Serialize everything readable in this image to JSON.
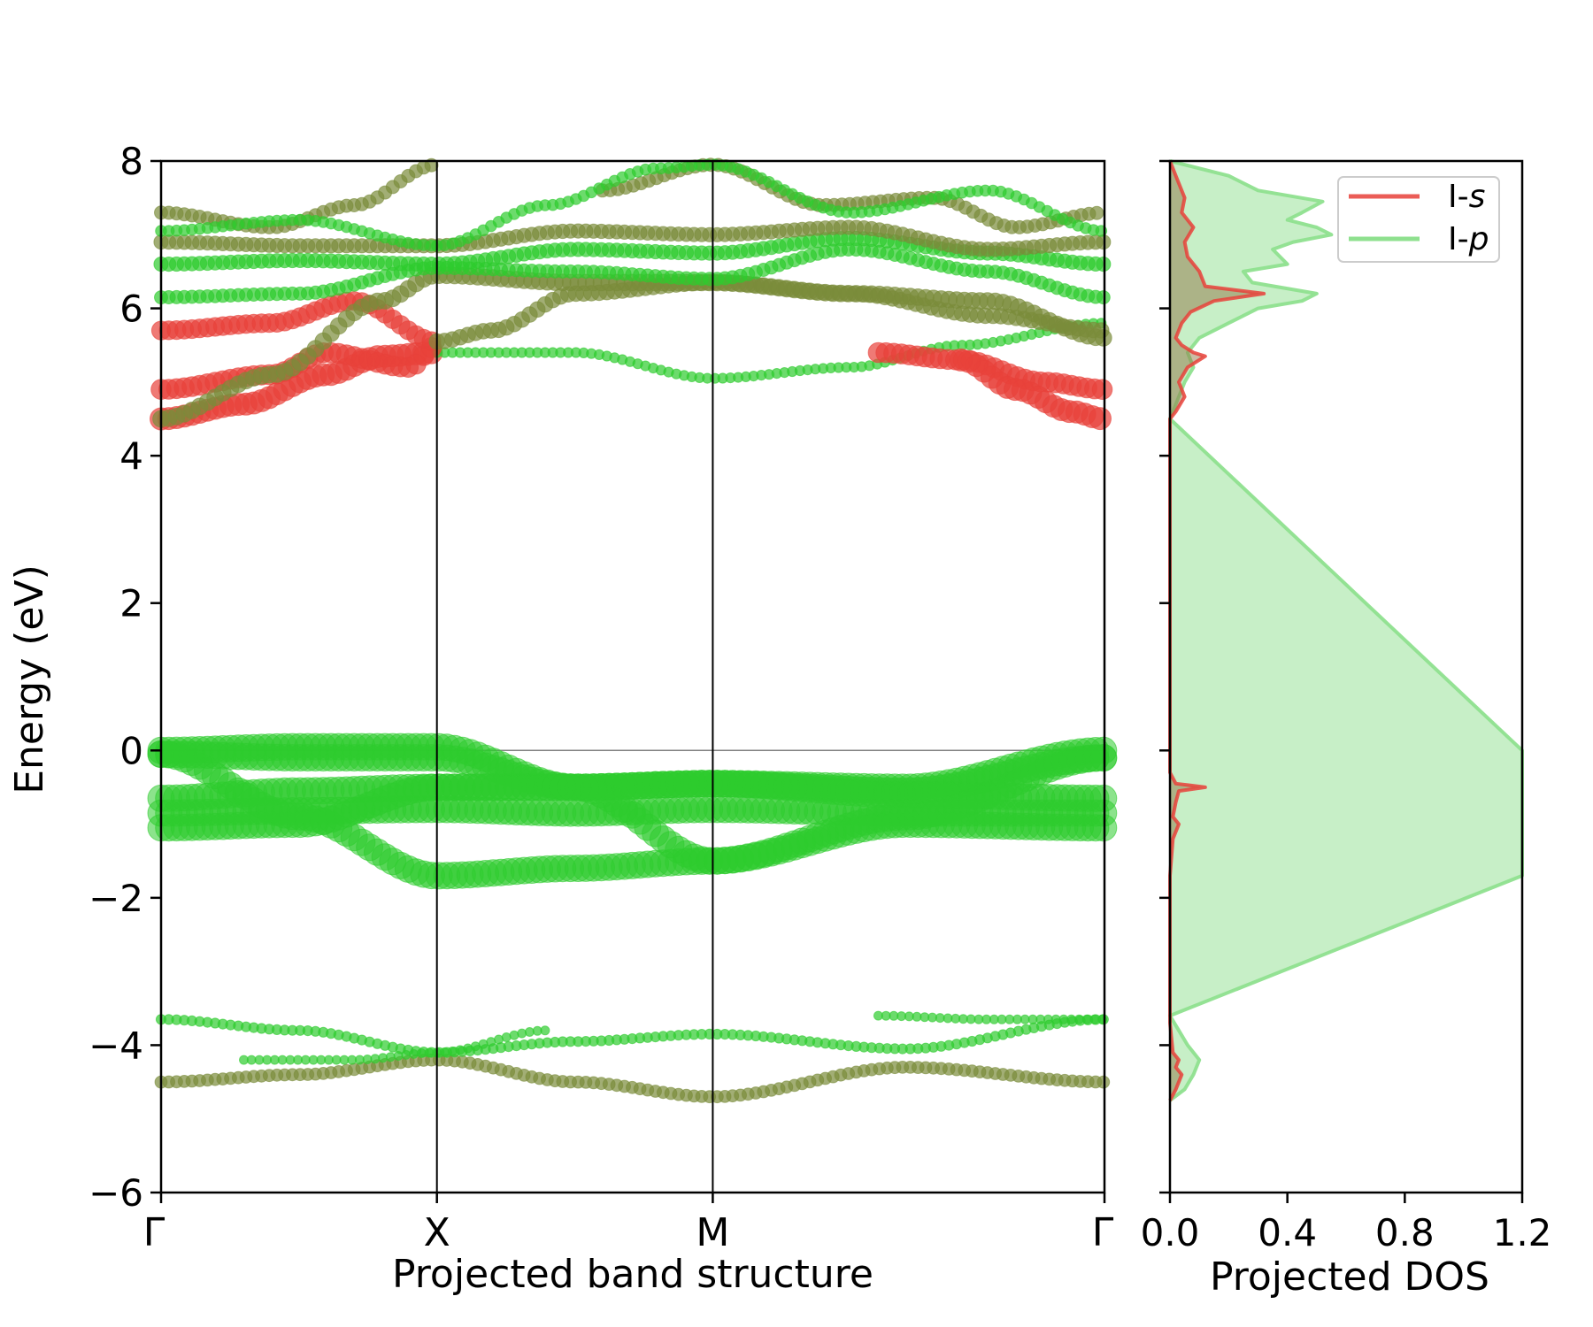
{
  "colors": {
    "s_orbital": "#e8413a",
    "p_orbital": "#2ecc2e",
    "p_light": "#8fe08f",
    "mixed": "#7a8c3a",
    "axis": "#000000",
    "fermi": "#808080"
  },
  "chart_data": [
    {
      "type": "scatter",
      "name": "band-structure",
      "xlabel": "Projected band structure",
      "ylabel": "Energy (eV)",
      "ylim": [
        -6,
        8
      ],
      "yticks": [
        -6,
        -4,
        -2,
        0,
        2,
        4,
        6,
        8
      ],
      "ytick_labels": [
        "−6",
        "−4",
        "−2",
        "0",
        "2",
        "4",
        "6",
        "8"
      ],
      "kpoints": [
        "Γ",
        "X",
        "M",
        "Γ"
      ],
      "kpoint_positions": [
        0,
        1,
        2,
        3.42
      ],
      "fermi_level": 0,
      "bands": [
        {
          "id": "v1",
          "orbital": "p",
          "weight": 1.0,
          "x": [
            0,
            0.5,
            1,
            1.5,
            2,
            2.7,
            3.42
          ],
          "e": [
            0.0,
            0.05,
            0.05,
            -0.5,
            -0.45,
            -0.5,
            0.0
          ]
        },
        {
          "id": "v2",
          "orbital": "p",
          "weight": 1.0,
          "x": [
            0,
            0.5,
            1,
            1.5,
            2,
            2.7,
            3.42
          ],
          "e": [
            -0.05,
            -0.1,
            -0.1,
            -0.5,
            -0.45,
            -0.55,
            -0.1
          ]
        },
        {
          "id": "v3",
          "orbital": "p",
          "weight": 1.0,
          "x": [
            0,
            0.5,
            1,
            1.5,
            2,
            2.7,
            3.42
          ],
          "e": [
            -0.65,
            -0.55,
            -0.5,
            -0.5,
            -0.45,
            -0.6,
            -0.65
          ]
        },
        {
          "id": "v4",
          "orbital": "p",
          "weight": 1.0,
          "x": [
            0,
            0.5,
            1,
            1.5,
            2,
            2.7,
            3.42
          ],
          "e": [
            -0.85,
            -0.82,
            -0.8,
            -0.85,
            -0.8,
            -0.85,
            -0.85
          ]
        },
        {
          "id": "v5",
          "orbital": "p",
          "weight": 1.0,
          "x": [
            0,
            0.5,
            1,
            1.5,
            2,
            2.7,
            3.42
          ],
          "e": [
            -0.05,
            -0.9,
            -1.7,
            -1.6,
            -1.5,
            -0.9,
            -0.1
          ]
        },
        {
          "id": "v6",
          "orbital": "p",
          "weight": 1.0,
          "x": [
            0,
            0.5,
            1,
            1.5,
            2,
            2.7,
            3.42
          ],
          "e": [
            -1.05,
            -1.0,
            -0.5,
            -0.5,
            -1.5,
            -1.0,
            -1.05
          ]
        },
        {
          "id": "l1",
          "orbital": "mixed",
          "weight": 0.35,
          "x": [
            0,
            0.5,
            1,
            1.5,
            2,
            2.7,
            3.42
          ],
          "e": [
            -4.5,
            -4.4,
            -4.2,
            -4.5,
            -4.7,
            -4.3,
            -4.5
          ]
        },
        {
          "id": "l2",
          "orbital": "p",
          "weight": 0.25,
          "x": [
            0,
            0.5,
            1,
            1.5,
            2,
            2.7,
            3.42
          ],
          "e": [
            -3.65,
            -3.8,
            -4.1,
            -3.95,
            -3.85,
            -4.05,
            -3.65
          ]
        },
        {
          "id": "l3",
          "orbital": "p",
          "weight": 0.2,
          "x": [
            0.3,
            0.7,
            1,
            1.4
          ],
          "e": [
            -4.2,
            -4.2,
            -4.1,
            -3.8
          ]
        },
        {
          "id": "l4",
          "orbital": "p",
          "weight": 0.2,
          "x": [
            2.6,
            3.0,
            3.42
          ],
          "e": [
            -3.6,
            -3.65,
            -3.65
          ]
        },
        {
          "id": "c1",
          "orbital": "s",
          "weight": 0.8,
          "x": [
            0,
            0.3,
            0.6,
            0.8,
            1.0
          ],
          "e": [
            4.5,
            4.7,
            5.1,
            5.35,
            5.4
          ]
        },
        {
          "id": "c1b",
          "orbital": "p",
          "weight": 0.25,
          "x": [
            1.0,
            1.5,
            2,
            2.5,
            2.9,
            3.42
          ],
          "e": [
            5.4,
            5.4,
            5.05,
            5.2,
            5.5,
            5.8
          ]
        },
        {
          "id": "c2",
          "orbital": "s",
          "weight": 0.7,
          "x": [
            0,
            0.4,
            0.6,
            0.9,
            1.0
          ],
          "e": [
            4.9,
            5.1,
            5.4,
            5.2,
            5.5
          ]
        },
        {
          "id": "c2b",
          "orbital": "s",
          "weight": 0.7,
          "x": [
            2.6,
            2.9,
            3.2,
            3.42
          ],
          "e": [
            5.4,
            5.3,
            5.0,
            4.9
          ]
        },
        {
          "id": "c2c",
          "orbital": "s",
          "weight": 0.8,
          "x": [
            2.9,
            3.1,
            3.3,
            3.42
          ],
          "e": [
            5.3,
            4.9,
            4.6,
            4.5
          ]
        },
        {
          "id": "c3",
          "orbital": "s",
          "weight": 0.65,
          "x": [
            0,
            0.4,
            0.7,
            1.0
          ],
          "e": [
            5.7,
            5.8,
            6.1,
            5.55
          ]
        },
        {
          "id": "c3b",
          "orbital": "mixed",
          "weight": 0.5,
          "x": [
            1.0,
            1.2,
            1.5,
            2,
            2.5,
            3.0,
            3.42
          ],
          "e": [
            5.55,
            5.7,
            6.2,
            6.35,
            6.2,
            5.9,
            5.7
          ]
        },
        {
          "id": "c4",
          "orbital": "mixed",
          "weight": 0.55,
          "x": [
            0,
            0.4,
            0.8,
            1.0,
            1.5,
            2,
            2.5,
            3.0,
            3.42
          ],
          "e": [
            4.5,
            5.1,
            6.1,
            6.45,
            6.35,
            6.35,
            6.2,
            6.1,
            5.6
          ]
        },
        {
          "id": "c5",
          "orbital": "p",
          "weight": 0.4,
          "x": [
            0,
            0.5,
            1.0,
            1.5,
            2,
            2.5,
            3.0,
            3.42
          ],
          "e": [
            6.15,
            6.2,
            6.55,
            6.5,
            6.4,
            6.8,
            6.5,
            6.15
          ]
        },
        {
          "id": "c6",
          "orbital": "p",
          "weight": 0.45,
          "x": [
            0,
            0.5,
            1.0,
            1.5,
            2,
            2.5,
            3.0,
            3.42
          ],
          "e": [
            6.6,
            6.65,
            6.6,
            6.8,
            6.75,
            6.95,
            6.75,
            6.6
          ]
        },
        {
          "id": "c7",
          "orbital": "mixed",
          "weight": 0.45,
          "x": [
            0,
            0.5,
            1.0,
            1.5,
            2,
            2.5,
            3.0,
            3.42
          ],
          "e": [
            6.9,
            6.85,
            6.85,
            7.05,
            7.0,
            7.1,
            6.8,
            6.9
          ]
        },
        {
          "id": "c8",
          "orbital": "mixed",
          "weight": 0.4,
          "x": [
            0,
            0.4,
            0.7,
            1.0
          ],
          "e": [
            7.3,
            7.1,
            7.4,
            7.95
          ]
        },
        {
          "id": "c8b",
          "orbital": "mixed",
          "weight": 0.4,
          "x": [
            1.6,
            2.0,
            2.4,
            2.8,
            3.1,
            3.42
          ],
          "e": [
            7.6,
            7.95,
            7.4,
            7.5,
            7.1,
            7.3
          ]
        },
        {
          "id": "c9",
          "orbital": "p",
          "weight": 0.3,
          "x": [
            0,
            0.5,
            1.0
          ],
          "e": [
            7.05,
            7.2,
            6.85
          ]
        },
        {
          "id": "c9b",
          "orbital": "p",
          "weight": 0.3,
          "x": [
            1.0,
            1.4,
            1.8,
            2.0,
            2.5,
            3.0,
            3.42
          ],
          "e": [
            6.85,
            7.4,
            7.9,
            7.95,
            7.3,
            7.6,
            7.05
          ]
        }
      ]
    },
    {
      "type": "area",
      "name": "projected-dos",
      "xlabel": "Projected DOS",
      "xlim": [
        0,
        1.2
      ],
      "ylim": [
        -6,
        8
      ],
      "xticks": [
        0.0,
        0.4,
        0.8,
        1.2
      ],
      "xtick_labels": [
        "0.0",
        "0.4",
        "0.8",
        "1.2"
      ],
      "legend": {
        "position": "top-right",
        "entries": [
          {
            "label_prefix": "I-",
            "label_orbital": "s",
            "orbital": "s"
          },
          {
            "label_prefix": "I-",
            "label_orbital": "p",
            "orbital": "p"
          }
        ]
      },
      "series": [
        {
          "name": "I-s",
          "orbital": "s",
          "energy": [
            -4.75,
            -4.6,
            -4.4,
            -4.3,
            -4.2,
            -4.1,
            -3.7,
            -1.7,
            -1.2,
            -1.0,
            -0.9,
            -0.7,
            -0.55,
            -0.5,
            -0.47,
            -0.45,
            -0.3,
            -0.0,
            4.5,
            4.6,
            4.8,
            5.0,
            5.2,
            5.35,
            5.4,
            5.5,
            5.6,
            5.8,
            5.95,
            6.1,
            6.2,
            6.3,
            6.5,
            6.7,
            6.9,
            7.1,
            7.3,
            7.5,
            7.8,
            8.0
          ],
          "dos": [
            0.0,
            0.02,
            0.04,
            0.02,
            0.03,
            0.01,
            0.0,
            0.0,
            0.01,
            0.03,
            0.01,
            0.02,
            0.03,
            0.12,
            0.06,
            0.02,
            0.0,
            0.0,
            0.0,
            0.02,
            0.05,
            0.03,
            0.06,
            0.12,
            0.08,
            0.04,
            0.02,
            0.04,
            0.07,
            0.15,
            0.32,
            0.12,
            0.1,
            0.06,
            0.05,
            0.08,
            0.04,
            0.05,
            0.02,
            0.0
          ]
        },
        {
          "name": "I-p",
          "orbital": "p",
          "energy": [
            -4.75,
            -4.6,
            -4.4,
            -4.2,
            -4.0,
            -3.8,
            -3.6,
            -1.7,
            -1.68,
            -0.02,
            0.0,
            4.5,
            4.8,
            5.0,
            5.2,
            5.4,
            5.6,
            5.8,
            6.0,
            6.1,
            6.2,
            6.35,
            6.5,
            6.6,
            6.8,
            6.9,
            7.0,
            7.1,
            7.2,
            7.3,
            7.45,
            7.6,
            7.8,
            8.0
          ],
          "dos": [
            0.0,
            0.05,
            0.08,
            0.1,
            0.06,
            0.03,
            0.0,
            1.2,
            1.2,
            1.2,
            1.2,
            0.0,
            0.03,
            0.05,
            0.08,
            0.06,
            0.1,
            0.2,
            0.3,
            0.45,
            0.5,
            0.28,
            0.25,
            0.4,
            0.35,
            0.42,
            0.55,
            0.5,
            0.4,
            0.45,
            0.52,
            0.3,
            0.2,
            0.0
          ]
        }
      ]
    }
  ]
}
